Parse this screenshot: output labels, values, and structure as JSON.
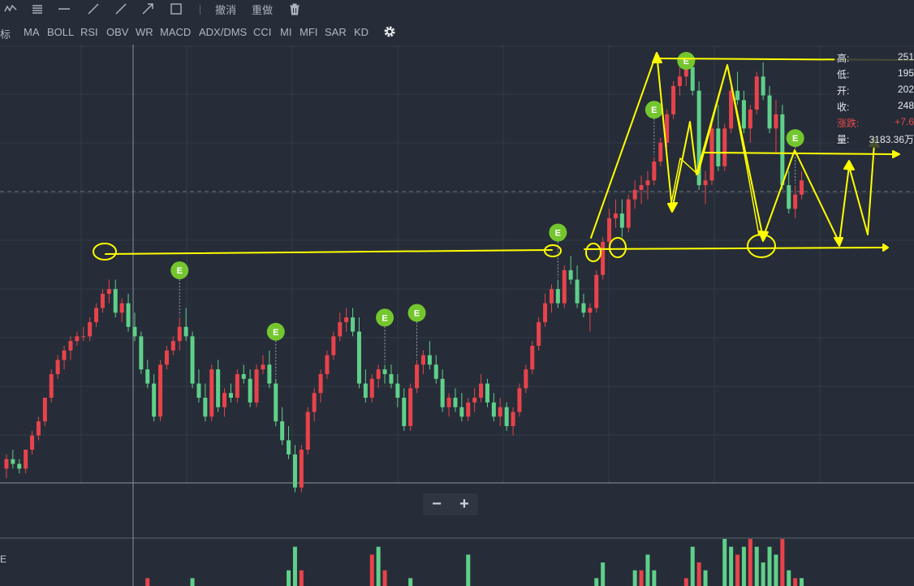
{
  "toolbar": {
    "undo_label": "撤消",
    "redo_label": "重做",
    "icons": [
      "polyline-icon",
      "parallel-lines-icon",
      "horizontal-line-icon",
      "ray-line-icon",
      "segment-line-icon",
      "arrow-line-icon",
      "rectangle-icon",
      "trash-icon"
    ]
  },
  "indicators": {
    "left_label": "标",
    "items": [
      "MA",
      "BOLL",
      "RSI",
      "OBV",
      "WR",
      "MACD",
      "ADX/DMS",
      "CCI",
      "MI",
      "MFI",
      "SAR",
      "KD"
    ]
  },
  "info_panel": {
    "high_label": "高:",
    "high_value": "251",
    "low_label": "低:",
    "low_value": "195",
    "open_label": "开:",
    "open_value": "202",
    "close_label": "收:",
    "close_value": "248",
    "change_label": "涨跌:",
    "change_value": "+7.6",
    "volume_label": "量:",
    "volume_value": "3183.36万"
  },
  "zoom": {
    "minus_label": "−",
    "plus_label": "+"
  },
  "volume_label": "E",
  "colors": {
    "background": "#262d38",
    "grid": "#323a46",
    "up": "#e8434b",
    "down": "#5fd08a",
    "event_marker": "#74c62e",
    "annotation": "#ffff00"
  },
  "chart_data": {
    "type": "candlestick",
    "y_scale": "relative price (chart printed no axis values)",
    "ylim": [
      0,
      100
    ],
    "candles_ohlc": [
      [
        13,
        16,
        11,
        15
      ],
      [
        15,
        17,
        13,
        14
      ],
      [
        14,
        15,
        12,
        13
      ],
      [
        13,
        17,
        12,
        17
      ],
      [
        17,
        21,
        16,
        20
      ],
      [
        20,
        24,
        19,
        23
      ],
      [
        23,
        28,
        22,
        28
      ],
      [
        28,
        34,
        27,
        33
      ],
      [
        33,
        37,
        32,
        36
      ],
      [
        36,
        39,
        34,
        38
      ],
      [
        38,
        41,
        36,
        40
      ],
      [
        40,
        42,
        39,
        41
      ],
      [
        41,
        43,
        40,
        41
      ],
      [
        41,
        45,
        40,
        44
      ],
      [
        44,
        48,
        43,
        47
      ],
      [
        47,
        51,
        46,
        50
      ],
      [
        50,
        53,
        48,
        51
      ],
      [
        51,
        53,
        45,
        46
      ],
      [
        46,
        49,
        44,
        48
      ],
      [
        48,
        50,
        42,
        43
      ],
      [
        43,
        46,
        40,
        41
      ],
      [
        41,
        42,
        33,
        34
      ],
      [
        34,
        36,
        30,
        31
      ],
      [
        31,
        33,
        23,
        24
      ],
      [
        24,
        36,
        23,
        35
      ],
      [
        35,
        39,
        34,
        38
      ],
      [
        38,
        41,
        37,
        40
      ],
      [
        40,
        45,
        38,
        43
      ],
      [
        43,
        47,
        40,
        41
      ],
      [
        41,
        42,
        30,
        31
      ],
      [
        31,
        34,
        27,
        28
      ],
      [
        28,
        31,
        23,
        24
      ],
      [
        24,
        35,
        23,
        34
      ],
      [
        34,
        36,
        25,
        26
      ],
      [
        26,
        30,
        24,
        29
      ],
      [
        29,
        31,
        27,
        28
      ],
      [
        28,
        34,
        27,
        33
      ],
      [
        33,
        35,
        31,
        32
      ],
      [
        32,
        34,
        26,
        27
      ],
      [
        27,
        35,
        26,
        34
      ],
      [
        34,
        37,
        33,
        35
      ],
      [
        35,
        38,
        30,
        31
      ],
      [
        31,
        32,
        22,
        23
      ],
      [
        23,
        26,
        18,
        19
      ],
      [
        19,
        22,
        15,
        16
      ],
      [
        16,
        18,
        8,
        9
      ],
      [
        9,
        18,
        8,
        17
      ],
      [
        17,
        26,
        16,
        25
      ],
      [
        25,
        30,
        23,
        29
      ],
      [
        29,
        34,
        27,
        33
      ],
      [
        33,
        38,
        32,
        37
      ],
      [
        37,
        42,
        36,
        41
      ],
      [
        41,
        46,
        40,
        44
      ],
      [
        44,
        47,
        42,
        45
      ],
      [
        45,
        47,
        41,
        42
      ],
      [
        42,
        45,
        30,
        31
      ],
      [
        31,
        34,
        27,
        28
      ],
      [
        28,
        33,
        27,
        32
      ],
      [
        32,
        35,
        30,
        34
      ],
      [
        34,
        35,
        31,
        33
      ],
      [
        33,
        35,
        30,
        31
      ],
      [
        31,
        33,
        26,
        28
      ],
      [
        28,
        30,
        21,
        22
      ],
      [
        22,
        31,
        21,
        30
      ],
      [
        30,
        36,
        29,
        35
      ],
      [
        35,
        38,
        33,
        37
      ],
      [
        37,
        40,
        34,
        35
      ],
      [
        35,
        37,
        31,
        32
      ],
      [
        32,
        34,
        25,
        26
      ],
      [
        26,
        29,
        24,
        28
      ],
      [
        28,
        30,
        25,
        26
      ],
      [
        26,
        29,
        23,
        24
      ],
      [
        24,
        28,
        23,
        27
      ],
      [
        27,
        30,
        25,
        28
      ],
      [
        28,
        33,
        27,
        31
      ],
      [
        31,
        32,
        26,
        27
      ],
      [
        27,
        29,
        23,
        24
      ],
      [
        24,
        28,
        22,
        26
      ],
      [
        26,
        27,
        21,
        22
      ],
      [
        22,
        26,
        20,
        25
      ],
      [
        25,
        31,
        24,
        30
      ],
      [
        30,
        35,
        29,
        34
      ],
      [
        34,
        40,
        33,
        39
      ],
      [
        39,
        45,
        38,
        44
      ],
      [
        44,
        50,
        43,
        48
      ],
      [
        48,
        52,
        46,
        51
      ],
      [
        51,
        53,
        47,
        48
      ],
      [
        48,
        56,
        47,
        55
      ],
      [
        55,
        58,
        52,
        53
      ],
      [
        53,
        56,
        47,
        48
      ],
      [
        48,
        50,
        45,
        46
      ],
      [
        46,
        48,
        42,
        47
      ],
      [
        47,
        55,
        46,
        54
      ],
      [
        54,
        62,
        53,
        61
      ],
      [
        61,
        68,
        60,
        66
      ],
      [
        66,
        70,
        64,
        67
      ],
      [
        67,
        70,
        62,
        64
      ],
      [
        64,
        71,
        63,
        70
      ],
      [
        70,
        74,
        68,
        72
      ],
      [
        72,
        75,
        69,
        73
      ],
      [
        73,
        76,
        70,
        74
      ],
      [
        74,
        79,
        73,
        78
      ],
      [
        78,
        83,
        77,
        82
      ],
      [
        82,
        89,
        81,
        88
      ],
      [
        88,
        95,
        87,
        94
      ],
      [
        94,
        98,
        92,
        96
      ],
      [
        96,
        99,
        94,
        98
      ],
      [
        98,
        99,
        92,
        93
      ],
      [
        93,
        95,
        72,
        73
      ],
      [
        73,
        76,
        69,
        74
      ],
      [
        74,
        86,
        73,
        85
      ],
      [
        85,
        90,
        76,
        77
      ],
      [
        77,
        86,
        76,
        85
      ],
      [
        85,
        94,
        84,
        93
      ],
      [
        93,
        97,
        90,
        91
      ],
      [
        91,
        93,
        84,
        85
      ],
      [
        85,
        90,
        82,
        89
      ],
      [
        89,
        97,
        88,
        96
      ],
      [
        96,
        99,
        91,
        92
      ],
      [
        92,
        94,
        84,
        85
      ],
      [
        85,
        91,
        80,
        88
      ],
      [
        88,
        90,
        72,
        73
      ],
      [
        73,
        76,
        67,
        68
      ],
      [
        68,
        73,
        66,
        71
      ],
      [
        71,
        76,
        70,
        74
      ]
    ],
    "volume_bars": [
      [
        0,
        0
      ],
      [
        0,
        0
      ],
      [
        0,
        0
      ],
      [
        0,
        0
      ],
      [
        0,
        0
      ],
      [
        0,
        0
      ],
      [
        0,
        0
      ],
      [
        0,
        0
      ],
      [
        0,
        0
      ],
      [
        0,
        0
      ],
      [
        0,
        0
      ],
      [
        0,
        0
      ],
      [
        0,
        0
      ],
      [
        0,
        0
      ],
      [
        0,
        0
      ],
      [
        0,
        0
      ],
      [
        0,
        0
      ],
      [
        0,
        0
      ],
      [
        0,
        0
      ],
      [
        0,
        0
      ],
      [
        0,
        0
      ],
      [
        0,
        0
      ],
      [
        1,
        0
      ],
      [
        0,
        0
      ],
      [
        0,
        0
      ],
      [
        0,
        0
      ],
      [
        0,
        0
      ],
      [
        0,
        0
      ],
      [
        0,
        0
      ],
      [
        1,
        1
      ],
      [
        0,
        0
      ],
      [
        0,
        0
      ],
      [
        0,
        0
      ],
      [
        0,
        0
      ],
      [
        0,
        0
      ],
      [
        0,
        0
      ],
      [
        0,
        0
      ],
      [
        0,
        0
      ],
      [
        0,
        0
      ],
      [
        0,
        0
      ],
      [
        0,
        0
      ],
      [
        0,
        0
      ],
      [
        0,
        0
      ],
      [
        0,
        0
      ],
      [
        2,
        1
      ],
      [
        5,
        1
      ],
      [
        2,
        0
      ],
      [
        0,
        0
      ],
      [
        0,
        0
      ],
      [
        0,
        0
      ],
      [
        0,
        0
      ],
      [
        0,
        0
      ],
      [
        0,
        0
      ],
      [
        0,
        0
      ],
      [
        0,
        0
      ],
      [
        0,
        0
      ],
      [
        0,
        0
      ],
      [
        4,
        0
      ],
      [
        5,
        1
      ],
      [
        2,
        0
      ],
      [
        0,
        0
      ],
      [
        0,
        0
      ],
      [
        0,
        0
      ],
      [
        1,
        1
      ],
      [
        0,
        0
      ],
      [
        0,
        0
      ],
      [
        0,
        0
      ],
      [
        0,
        0
      ],
      [
        0,
        0
      ],
      [
        0,
        0
      ],
      [
        0,
        0
      ],
      [
        0,
        0
      ],
      [
        4,
        1
      ],
      [
        0,
        0
      ],
      [
        0,
        0
      ],
      [
        0,
        0
      ],
      [
        0,
        0
      ],
      [
        0,
        0
      ],
      [
        0,
        0
      ],
      [
        0,
        0
      ],
      [
        0,
        0
      ],
      [
        0,
        0
      ],
      [
        0,
        0
      ],
      [
        0,
        0
      ],
      [
        0,
        0
      ],
      [
        0,
        0
      ],
      [
        0,
        0
      ],
      [
        0,
        0
      ],
      [
        0,
        0
      ],
      [
        0,
        0
      ],
      [
        0,
        0
      ],
      [
        0,
        0
      ],
      [
        1,
        1
      ],
      [
        3,
        1
      ],
      [
        0,
        0
      ],
      [
        0,
        0
      ],
      [
        0,
        0
      ],
      [
        0,
        0
      ],
      [
        2,
        1
      ],
      [
        2,
        0
      ],
      [
        4,
        1
      ],
      [
        2,
        1
      ],
      [
        0,
        0
      ],
      [
        0,
        0
      ],
      [
        0,
        0
      ],
      [
        0,
        0
      ],
      [
        1,
        0
      ],
      [
        5,
        1
      ],
      [
        3,
        0
      ],
      [
        2,
        1
      ],
      [
        0,
        0
      ],
      [
        0,
        0
      ],
      [
        6,
        1
      ],
      [
        5,
        1
      ],
      [
        4,
        0
      ],
      [
        5,
        1
      ],
      [
        6,
        0
      ],
      [
        5,
        1
      ],
      [
        3,
        1
      ],
      [
        5,
        1
      ],
      [
        4,
        1
      ],
      [
        6,
        0
      ],
      [
        2,
        1
      ],
      [
        1,
        0
      ],
      [
        1,
        1
      ]
    ],
    "event_markers": [
      {
        "label": "E",
        "candle": 27
      },
      {
        "label": "E",
        "candle": 42
      },
      {
        "label": "E",
        "candle": 59
      },
      {
        "label": "E",
        "candle": 64
      },
      {
        "label": "E",
        "candle": 86
      },
      {
        "label": "E",
        "candle": 101
      },
      {
        "label": "E",
        "candle": 106
      },
      {
        "label": "E",
        "candle": 123
      }
    ],
    "grid": true
  }
}
